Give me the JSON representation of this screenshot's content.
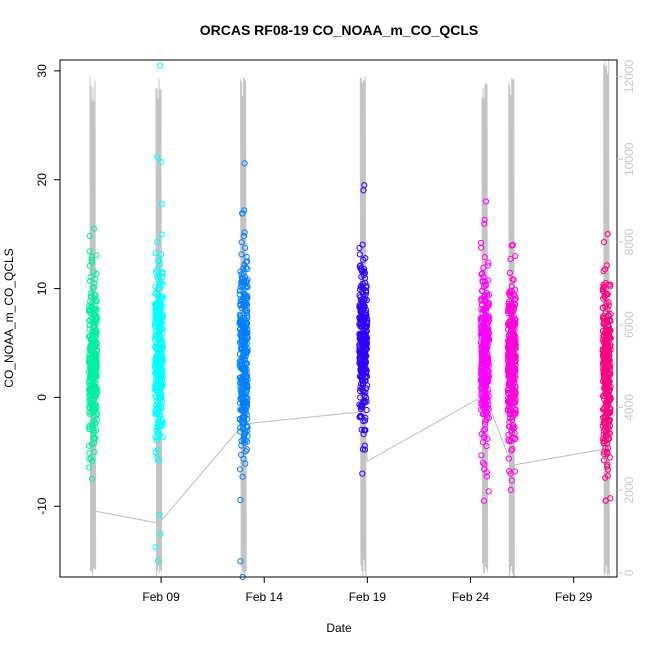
{
  "chart_data": {
    "type": "scatter",
    "title": "ORCAS RF08-19 CO_NOAA_m_CO_QCLS",
    "xlabel": "Date",
    "ylabel": "CO_NOAA_m_CO_QCLS",
    "x_ticks": [
      "Feb 09",
      "Feb 14",
      "Feb 19",
      "Feb 24",
      "Feb 29"
    ],
    "y_ticks": [
      -10,
      0,
      10,
      20,
      30
    ],
    "y2_ticks": [
      0,
      2000,
      4000,
      6000,
      8000,
      10000,
      12000
    ],
    "ylim": [
      -16.5,
      31
    ],
    "y2lim": [
      -100,
      12400
    ],
    "xlim_days": [
      4.1,
      31.1
    ],
    "tick_days": [
      9,
      14,
      19,
      24,
      29
    ],
    "colors": {
      "frame": "#000000",
      "altitude": "#bebebe",
      "right_axis": "#c8c8c8"
    },
    "flights": [
      {
        "day": 5.7,
        "color": "#00f0a0",
        "center": 3,
        "spread": 3.6,
        "min": -7.5,
        "max": 15.5,
        "altmax": 12000,
        "y2_path": 1500
      },
      {
        "day": 8.9,
        "color": "#00ffff",
        "center": 4,
        "spread": 3.8,
        "min": -15,
        "max": 30.5,
        "altmax": 12000,
        "y2_path": 1200
      },
      {
        "day": 13.0,
        "color": "#0080ff",
        "center": 4,
        "spread": 4.2,
        "min": -16.5,
        "max": 21.5,
        "altmax": 12000,
        "y2_path": 3600
      },
      {
        "day": 18.8,
        "color": "#3000ff",
        "center": 5,
        "spread": 3.4,
        "min": -7,
        "max": 19.5,
        "altmax": 12000,
        "y2_path": 3900
      },
      {
        "day": 24.7,
        "color": "#ff00ff",
        "center": 4,
        "spread": 3.8,
        "min": -9.5,
        "max": 18,
        "altmax": 12000,
        "y2_path": 4300
      },
      {
        "day": 26.0,
        "color": "#ff00dd",
        "center": 3,
        "spread": 3.6,
        "min": -8.5,
        "max": 14,
        "altmax": 12000,
        "y2_path": 2600
      },
      {
        "day": 30.6,
        "color": "#ff0080",
        "center": 3,
        "spread": 3.8,
        "min": -9.5,
        "max": 15,
        "altmax": 12400,
        "y2_path": 3000
      }
    ],
    "altitude_path": [
      {
        "day": 5.7,
        "y2": 1500
      },
      {
        "day": 8.9,
        "y2": 1200
      },
      {
        "day": 13.0,
        "y2": 3600
      },
      {
        "day": 18.8,
        "y2": 3900
      },
      {
        "day": 19.0,
        "y2": 2700
      },
      {
        "day": 24.7,
        "y2": 4300
      },
      {
        "day": 26.0,
        "y2": 2600
      },
      {
        "day": 30.6,
        "y2": 3000
      }
    ],
    "grid": false,
    "legend": "none"
  }
}
